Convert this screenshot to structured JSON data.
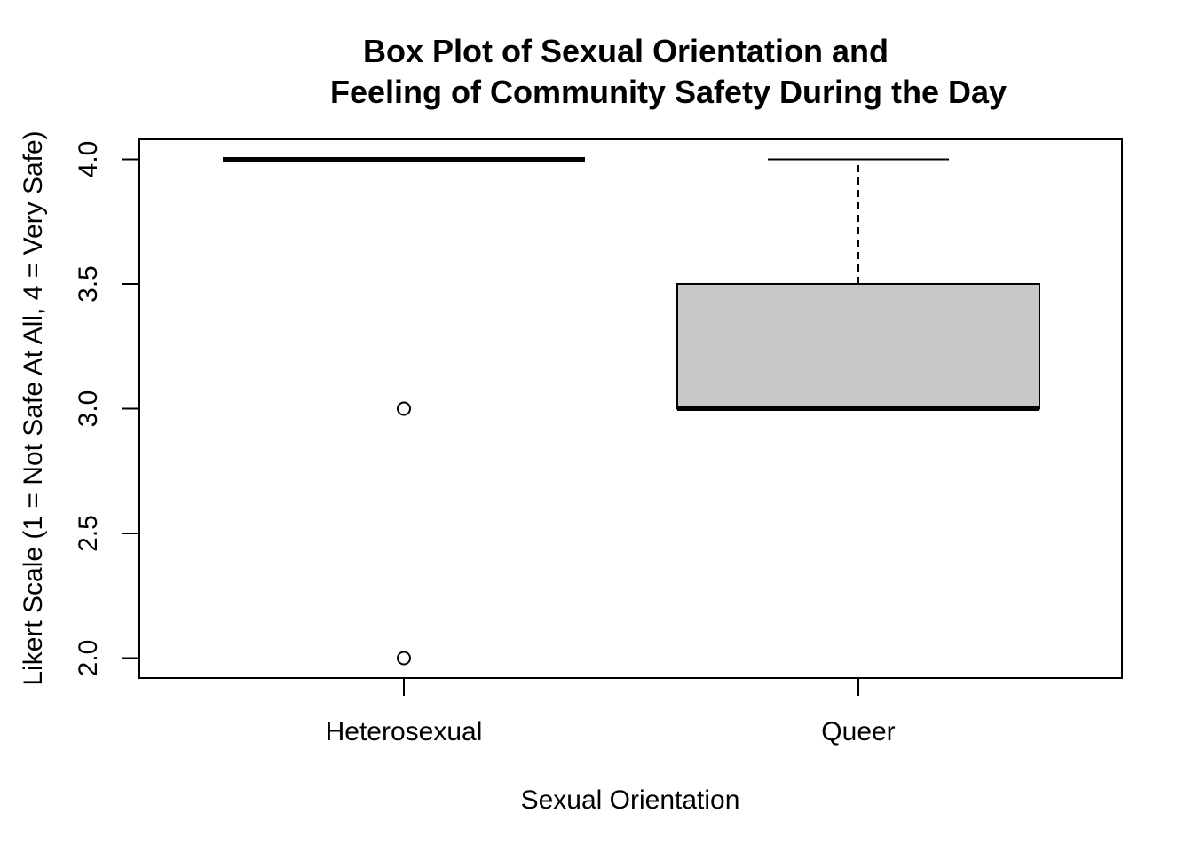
{
  "chart_data": {
    "type": "boxplot",
    "title_line1": "Box Plot of Sexual Orientation and",
    "title_line2": "Feeling of Community Safety During the Day",
    "xlabel": "Sexual Orientation",
    "ylabel": "Likert Scale (1 = Not Safe At All, 4 = Very Safe)",
    "categories": [
      "Heterosexual",
      "Queer"
    ],
    "yticks": [
      "2.0",
      "2.5",
      "3.0",
      "3.5",
      "4.0"
    ],
    "ylim": [
      1.92,
      4.08
    ],
    "box_fill_color": "#c8c8c8",
    "boxes": [
      {
        "category": "Heterosexual",
        "min": 4.0,
        "q1": 4.0,
        "median": 4.0,
        "q3": 4.0,
        "max": 4.0,
        "outliers": [
          3.0,
          2.0
        ]
      },
      {
        "category": "Queer",
        "min": 3.0,
        "q1": 3.0,
        "median": 3.0,
        "q3": 3.5,
        "max": 4.0,
        "outliers": []
      }
    ]
  }
}
